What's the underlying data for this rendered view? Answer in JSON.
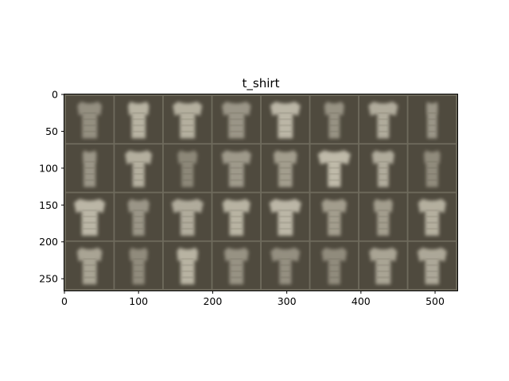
{
  "chart_data": {
    "type": "image_grid",
    "title": "t_shirt",
    "xlim": [
      0,
      530
    ],
    "ylim": [
      266,
      0
    ],
    "xticks": [
      0,
      100,
      200,
      300,
      400,
      500
    ],
    "yticks": [
      0,
      50,
      100,
      150,
      200,
      250
    ],
    "grid_rows": 4,
    "grid_cols": 8,
    "tile_size": 64,
    "tile_padding": 2,
    "colors": {
      "frame": "#6e6a5c",
      "tile_background": "#4f4a3e",
      "shirt_bright": "#c9c4b3",
      "shirt_dim": "#7d786a"
    },
    "tiles": [
      {
        "shape": "tee",
        "brightness": 0.35,
        "shoulder": 0.85,
        "body": 0.75,
        "sleeve": 0.5
      },
      {
        "shape": "tee",
        "brightness": 0.85,
        "shoulder": 0.8,
        "body": 0.7,
        "sleeve": 0.35
      },
      {
        "shape": "tee",
        "brightness": 0.8,
        "shoulder": 0.95,
        "body": 0.75,
        "sleeve": 0.7
      },
      {
        "shape": "tee",
        "brightness": 0.45,
        "shoulder": 1.0,
        "body": 0.8,
        "sleeve": 0.6
      },
      {
        "shape": "tee",
        "brightness": 0.9,
        "shoulder": 0.95,
        "body": 0.75,
        "sleeve": 0.75
      },
      {
        "shape": "tee",
        "brightness": 0.4,
        "shoulder": 0.7,
        "body": 0.55,
        "sleeve": 0.4
      },
      {
        "shape": "tee",
        "brightness": 0.75,
        "shoulder": 0.95,
        "body": 0.6,
        "sleeve": 0.7
      },
      {
        "shape": "tee",
        "brightness": 0.45,
        "shoulder": 0.5,
        "body": 0.5,
        "sleeve": 0.1
      },
      {
        "shape": "tee",
        "brightness": 0.45,
        "shoulder": 0.55,
        "body": 0.6,
        "sleeve": 0.2
      },
      {
        "shape": "tee",
        "brightness": 0.8,
        "shoulder": 0.9,
        "body": 0.6,
        "sleeve": 0.6
      },
      {
        "shape": "tee",
        "brightness": 0.25,
        "shoulder": 0.7,
        "body": 0.6,
        "sleeve": 0.4
      },
      {
        "shape": "tee",
        "brightness": 0.5,
        "shoulder": 1.0,
        "body": 0.75,
        "sleeve": 0.65
      },
      {
        "shape": "tee",
        "brightness": 0.55,
        "shoulder": 0.85,
        "body": 0.7,
        "sleeve": 0.45
      },
      {
        "shape": "tee",
        "brightness": 0.95,
        "shoulder": 1.0,
        "body": 0.65,
        "sleeve": 0.85
      },
      {
        "shape": "tee",
        "brightness": 0.75,
        "shoulder": 0.75,
        "body": 0.55,
        "sleeve": 0.5
      },
      {
        "shape": "tee",
        "brightness": 0.3,
        "shoulder": 0.6,
        "body": 0.6,
        "sleeve": 0.3
      },
      {
        "shape": "tee",
        "brightness": 0.9,
        "shoulder": 1.0,
        "body": 0.8,
        "sleeve": 0.75
      },
      {
        "shape": "tee",
        "brightness": 0.45,
        "shoulder": 0.75,
        "body": 0.6,
        "sleeve": 0.45
      },
      {
        "shape": "tee",
        "brightness": 0.75,
        "shoulder": 1.0,
        "body": 0.7,
        "sleeve": 0.8
      },
      {
        "shape": "tee",
        "brightness": 0.85,
        "shoulder": 0.95,
        "body": 0.7,
        "sleeve": 0.6
      },
      {
        "shape": "tee",
        "brightness": 0.9,
        "shoulder": 1.0,
        "body": 0.75,
        "sleeve": 0.8
      },
      {
        "shape": "tee",
        "brightness": 0.55,
        "shoulder": 0.85,
        "body": 0.65,
        "sleeve": 0.55
      },
      {
        "shape": "tee",
        "brightness": 0.55,
        "shoulder": 0.7,
        "body": 0.6,
        "sleeve": 0.35
      },
      {
        "shape": "tee",
        "brightness": 0.8,
        "shoulder": 0.95,
        "body": 0.7,
        "sleeve": 0.6
      },
      {
        "shape": "tee",
        "brightness": 0.65,
        "shoulder": 0.85,
        "body": 0.7,
        "sleeve": 0.55
      },
      {
        "shape": "tee",
        "brightness": 0.3,
        "shoulder": 0.7,
        "body": 0.6,
        "sleeve": 0.3
      },
      {
        "shape": "tee",
        "brightness": 0.85,
        "shoulder": 0.8,
        "body": 0.7,
        "sleeve": 0.35
      },
      {
        "shape": "tee",
        "brightness": 0.4,
        "shoulder": 0.85,
        "body": 0.7,
        "sleeve": 0.5
      },
      {
        "shape": "tee",
        "brightness": 0.35,
        "shoulder": 0.95,
        "body": 0.6,
        "sleeve": 0.7
      },
      {
        "shape": "tee",
        "brightness": 0.3,
        "shoulder": 0.85,
        "body": 0.6,
        "sleeve": 0.55
      },
      {
        "shape": "tee",
        "brightness": 0.65,
        "shoulder": 0.95,
        "body": 0.75,
        "sleeve": 0.6
      },
      {
        "shape": "tee",
        "brightness": 0.7,
        "shoulder": 0.95,
        "body": 0.7,
        "sleeve": 0.7
      }
    ]
  }
}
